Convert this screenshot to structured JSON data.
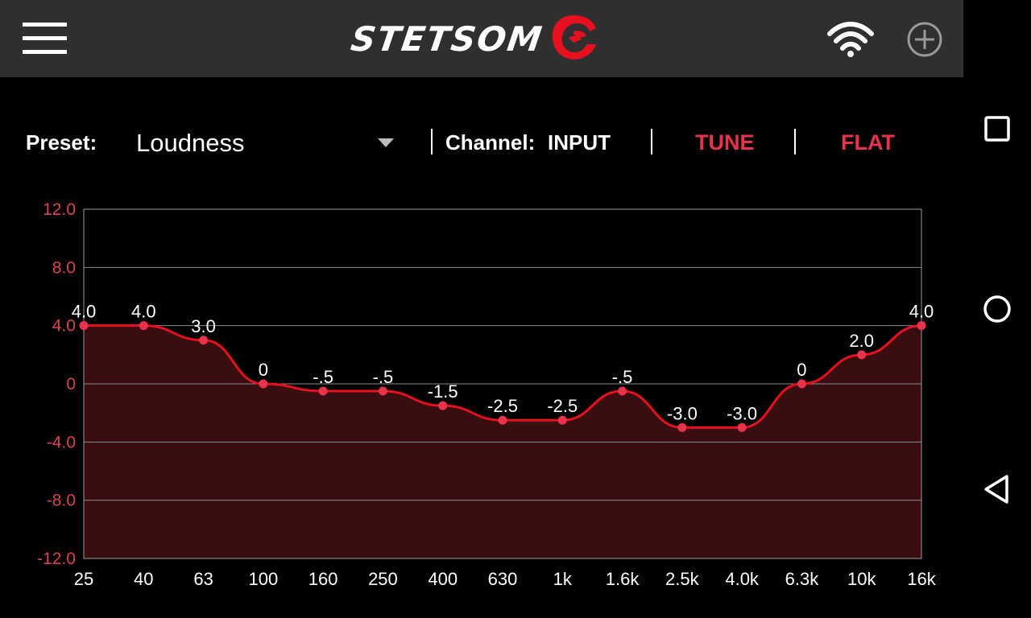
{
  "header": {
    "logo_text": "STETSOM",
    "menu_icon": "hamburger-menu-icon",
    "wifi_icon": "wifi-icon",
    "add_icon": "plus-circle-icon"
  },
  "controls": {
    "preset_label": "Preset:",
    "preset_value": "Loudness",
    "channel_label": "Channel:",
    "channel_value": "INPUT",
    "tune_label": "TUNE",
    "flat_label": "FLAT"
  },
  "nav": {
    "recent_icon": "square-icon",
    "home_icon": "circle-icon",
    "back_icon": "triangle-back-icon"
  },
  "colors": {
    "accent": "#e8334a",
    "line": "#e8101f",
    "fill": "#3a0d10",
    "topbar": "#2f2f2f",
    "axis_label": "#d9434f"
  },
  "chart_data": {
    "type": "line",
    "categories": [
      "25",
      "40",
      "63",
      "100",
      "160",
      "250",
      "400",
      "630",
      "1k",
      "1.6k",
      "2.5k",
      "4.0k",
      "6.3k",
      "10k",
      "16k"
    ],
    "values": [
      4.0,
      4.0,
      3.0,
      0,
      -0.5,
      -0.5,
      -1.5,
      -2.5,
      -2.5,
      -0.5,
      -3.0,
      -3.0,
      0,
      2.0,
      4.0
    ],
    "point_labels": [
      "4.0",
      "4.0",
      "3.0",
      "0",
      "-.5",
      "-.5",
      "-1.5",
      "-2.5",
      "-2.5",
      "-.5",
      "-3.0",
      "-3.0",
      "0",
      "2.0",
      "4.0"
    ],
    "ylim": [
      -12,
      12
    ],
    "yticks": [
      "12.0",
      "8.0",
      "4.0",
      "0",
      "-4.0",
      "-8.0",
      "-12.0"
    ],
    "ytick_values": [
      12,
      8,
      4,
      0,
      -4,
      -8,
      -12
    ],
    "grid": true,
    "area_fill": true
  }
}
